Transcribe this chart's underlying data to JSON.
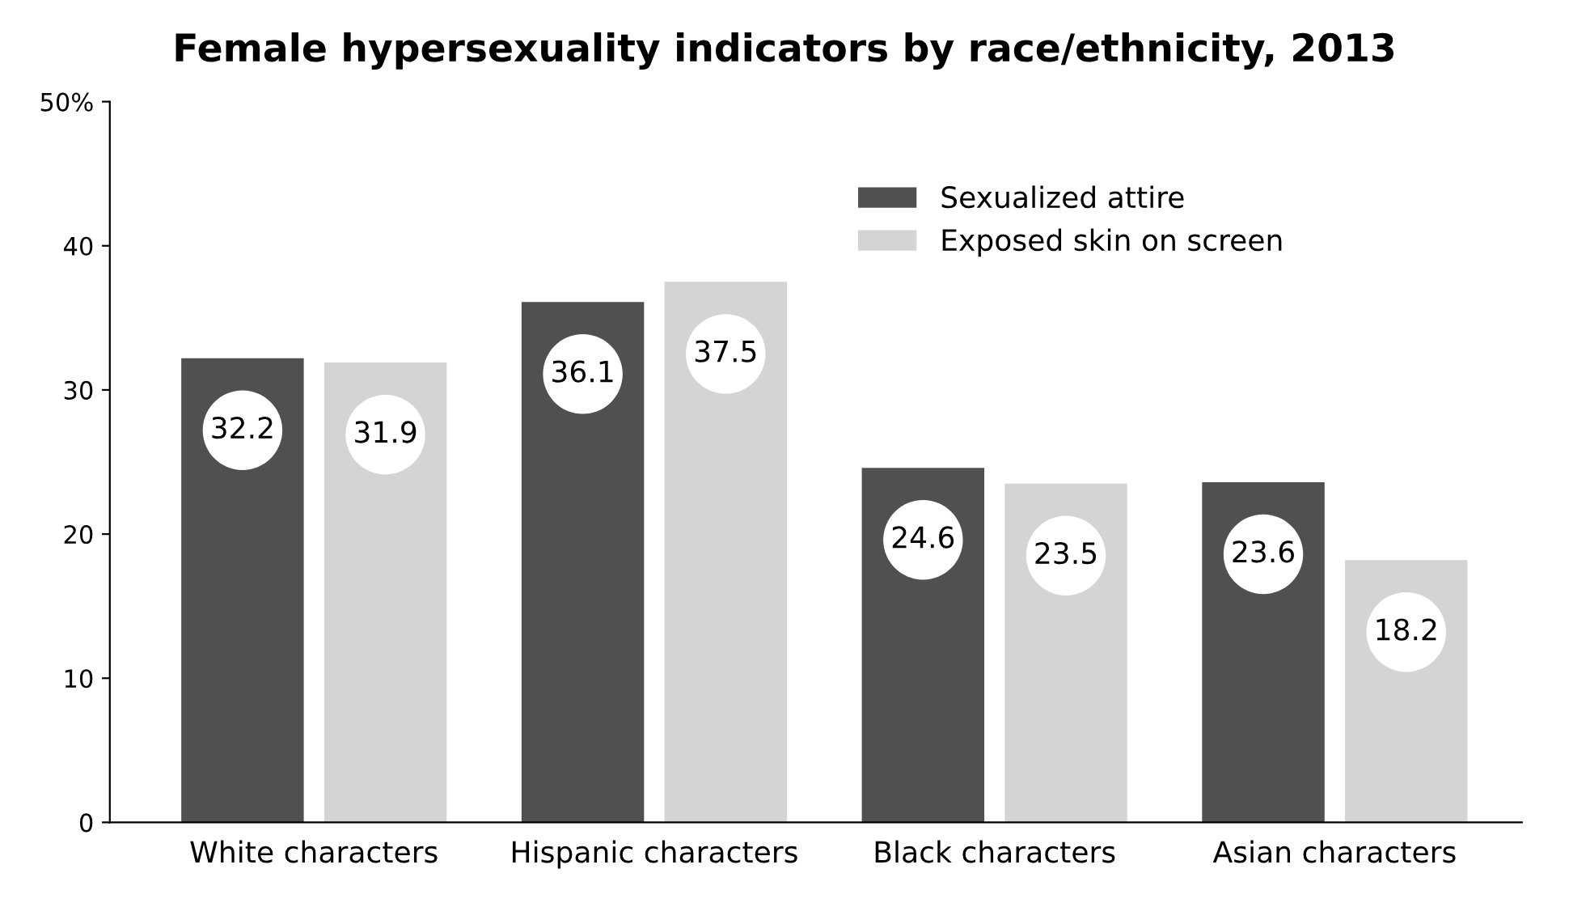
{
  "chart_data": {
    "type": "bar",
    "title": "Female hypersexuality indicators by race/ethnicity, 2013",
    "categories": [
      "White characters",
      "Hispanic characters",
      "Black characters",
      "Asian characters"
    ],
    "series": [
      {
        "name": "Sexualized attire",
        "color": "#505050",
        "values": [
          32.2,
          36.1,
          24.6,
          23.6
        ]
      },
      {
        "name": "Exposed skin on screen",
        "color": "#d4d4d4",
        "values": [
          31.9,
          37.5,
          23.5,
          18.2
        ]
      }
    ],
    "ylim": [
      0,
      50
    ],
    "yticks": [
      0,
      10,
      20,
      30,
      40,
      {
        "value": 50,
        "label": "50%"
      }
    ],
    "grid": false,
    "legend": "top right",
    "data_labels": true
  }
}
